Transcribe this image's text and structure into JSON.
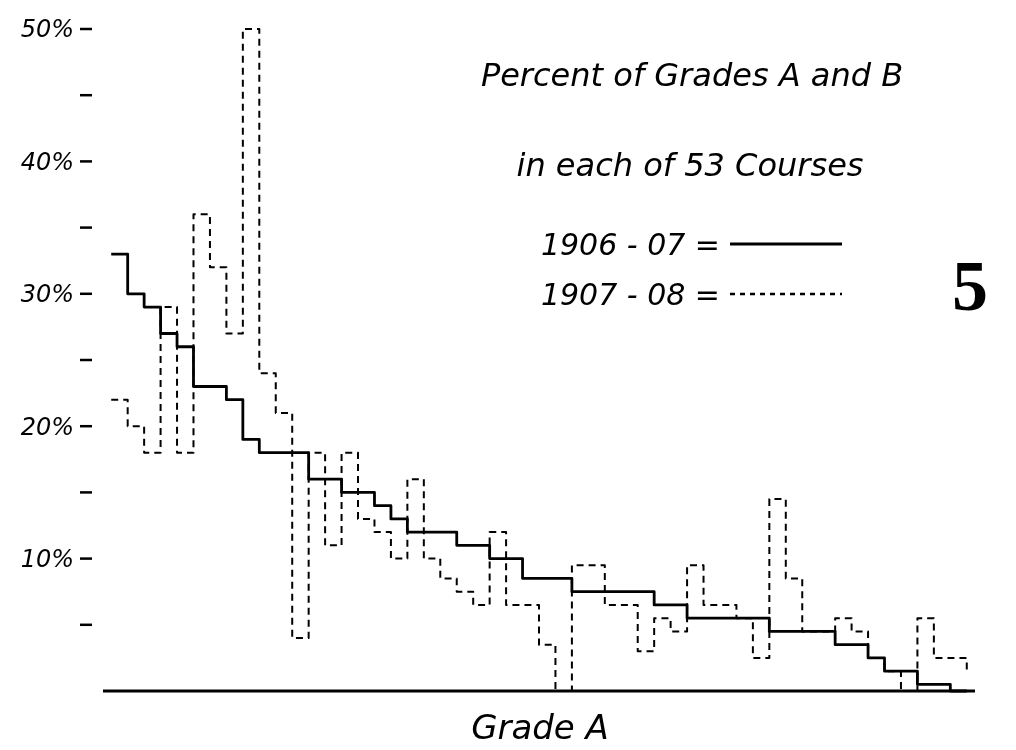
{
  "chart_data": {
    "type": "step",
    "title": "Percent of Grades A and B",
    "subtitle": "in each of 53 Courses",
    "xlabel": "Grade A",
    "categories": [
      null,
      null,
      null,
      null,
      null,
      null,
      null,
      null,
      null,
      null,
      null,
      null,
      null,
      null,
      null,
      null,
      null,
      null,
      null,
      null,
      null,
      null,
      null,
      null,
      null,
      null,
      null,
      null,
      null,
      null,
      null,
      null,
      null,
      null,
      null,
      null,
      null,
      null,
      null,
      null,
      null,
      null,
      null,
      null,
      null,
      null,
      null,
      null,
      null,
      null,
      null,
      null,
      null
    ],
    "series": [
      {
        "name": "1906 - 07 =",
        "color": "#000000",
        "line_style": "solid",
        "values": [
          33,
          30,
          29,
          27,
          26,
          23,
          23,
          22,
          19,
          18,
          18,
          18,
          16,
          16,
          15,
          15,
          14,
          13,
          12,
          12,
          12,
          11,
          11,
          10,
          10,
          8.5,
          8.5,
          8.5,
          7.5,
          7.5,
          7.5,
          7.5,
          7.5,
          6.5,
          6.5,
          5.5,
          5.5,
          5.5,
          5.5,
          5.5,
          4.5,
          4.5,
          4.5,
          4.5,
          3.5,
          3.5,
          2.5,
          1.5,
          1.5,
          0.5,
          0.5,
          0,
          0
        ]
      },
      {
        "name": "1907 - 08 =",
        "color": "#000000",
        "line_style": "dashed",
        "values": [
          22,
          20,
          18,
          29,
          18,
          36,
          32,
          27,
          50,
          24,
          21,
          4,
          18,
          11,
          18,
          13,
          12,
          10,
          16,
          10,
          8.5,
          7.5,
          6.5,
          12,
          6.5,
          6.5,
          3.5,
          0,
          9.5,
          9.5,
          6.5,
          6.5,
          3,
          5.5,
          4.5,
          9.5,
          6.5,
          6.5,
          5.5,
          2.5,
          14.5,
          8.5,
          4.5,
          4.5,
          5.5,
          4.5,
          2.5,
          1.5,
          0,
          5.5,
          2.5,
          2.5,
          1.5
        ]
      }
    ],
    "ylim": [
      0,
      50
    ],
    "yticks": [
      {
        "value": 5,
        "label": null
      },
      {
        "value": 10,
        "label": "10%"
      },
      {
        "value": 15,
        "label": null
      },
      {
        "value": 20,
        "label": "20%"
      },
      {
        "value": 25,
        "label": null
      },
      {
        "value": 30,
        "label": "30%"
      },
      {
        "value": 35,
        "label": null
      },
      {
        "value": 40,
        "label": "40%"
      },
      {
        "value": 45,
        "label": null
      },
      {
        "value": 50,
        "label": "50%"
      }
    ],
    "tick_labels": "y",
    "grid": false,
    "legend": "top right",
    "annotations": [
      "5"
    ]
  }
}
